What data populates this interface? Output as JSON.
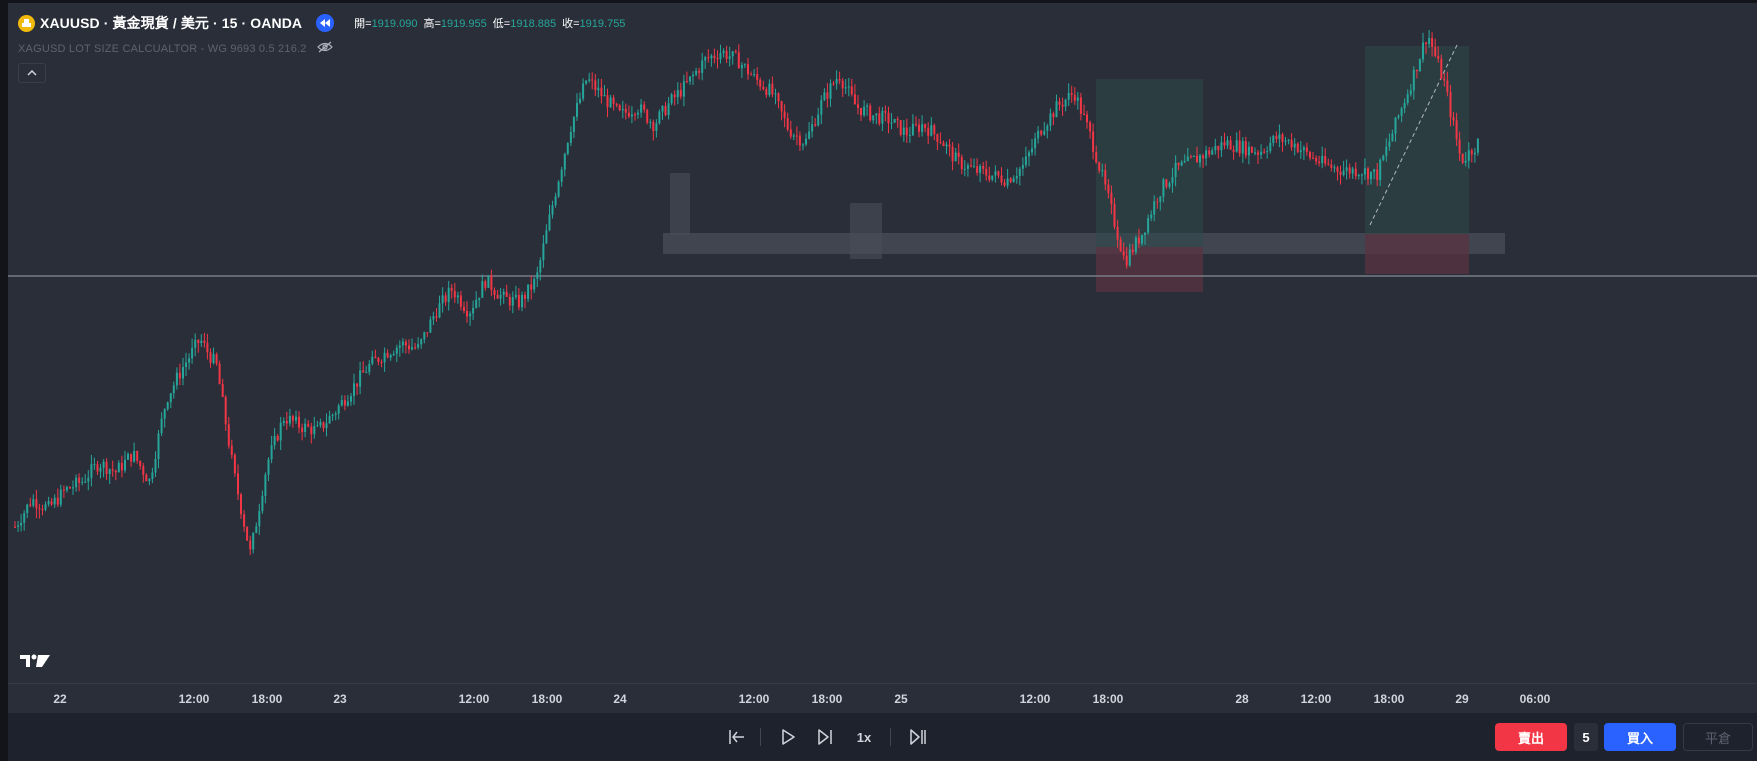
{
  "symbol": {
    "title": "XAUUSD · 黃金現貨 / 美元 · 15 · OANDA",
    "logo_icon": "gold-coin-icon",
    "replay_icon": "replay-rewind-icon"
  },
  "ohlc": {
    "open_label": "開=",
    "open": "1919.090",
    "high_label": "高=",
    "high": "1919.955",
    "low_label": "低=",
    "low": "1918.885",
    "close_label": "收=",
    "close": "1919.755"
  },
  "indicator": {
    "text": "XAGUSD LOT SIZE CALCUALTOR - WG 9693 0.5 216.2",
    "eye_icon": "eye-hidden-icon"
  },
  "collapse_icon": "chevron-up-icon",
  "brand_icon": "tradingview-logo-icon",
  "time_axis": {
    "labels": [
      "22",
      "12:00",
      "18:00",
      "23",
      "12:00",
      "18:00",
      "24",
      "12:00",
      "18:00",
      "25",
      "12:00",
      "18:00",
      "28",
      "12:00",
      "18:00",
      "29",
      "06:00"
    ]
  },
  "replay_controls": {
    "jump_back_icon": "jump-to-start-icon",
    "play_icon": "play-icon",
    "step_icon": "step-forward-icon",
    "speed": "1x",
    "jump_realtime_icon": "jump-to-realtime-icon"
  },
  "trade": {
    "sell_label": "賣出",
    "quantity": "5",
    "buy_label": "買入",
    "close_label": "平倉"
  },
  "colors": {
    "background": "#2a2e39",
    "bull": "#26a69a",
    "bear": "#f23645",
    "accent": "#2962ff",
    "zone": "#4a4e58"
  },
  "price_path": [
    1858,
    1864,
    1862,
    1866,
    1868,
    1872,
    1870,
    1874,
    1868,
    1886,
    1893,
    1899,
    1893,
    1870,
    1852,
    1872,
    1882,
    1880,
    1879,
    1883,
    1888,
    1893,
    1896,
    1898,
    1897,
    1905,
    1910,
    1905,
    1912,
    1908,
    1907,
    1912,
    1929,
    1945,
    1956,
    1952,
    1948,
    1950,
    1946,
    1951,
    1955,
    1960,
    1962,
    1960,
    1956,
    1953,
    1945,
    1942,
    1951,
    1957,
    1950,
    1948,
    1947,
    1944,
    1946,
    1943,
    1938,
    1936,
    1935,
    1934,
    1937,
    1945,
    1950,
    1953,
    1943,
    1930,
    1916,
    1922,
    1931,
    1936,
    1938,
    1940,
    1942,
    1941,
    1940,
    1943,
    1942,
    1939,
    1937,
    1936,
    1936,
    1935,
    1945,
    1955,
    1966,
    1955,
    1938,
    1942
  ],
  "chart_range": {
    "min": 1840,
    "max": 1966
  }
}
